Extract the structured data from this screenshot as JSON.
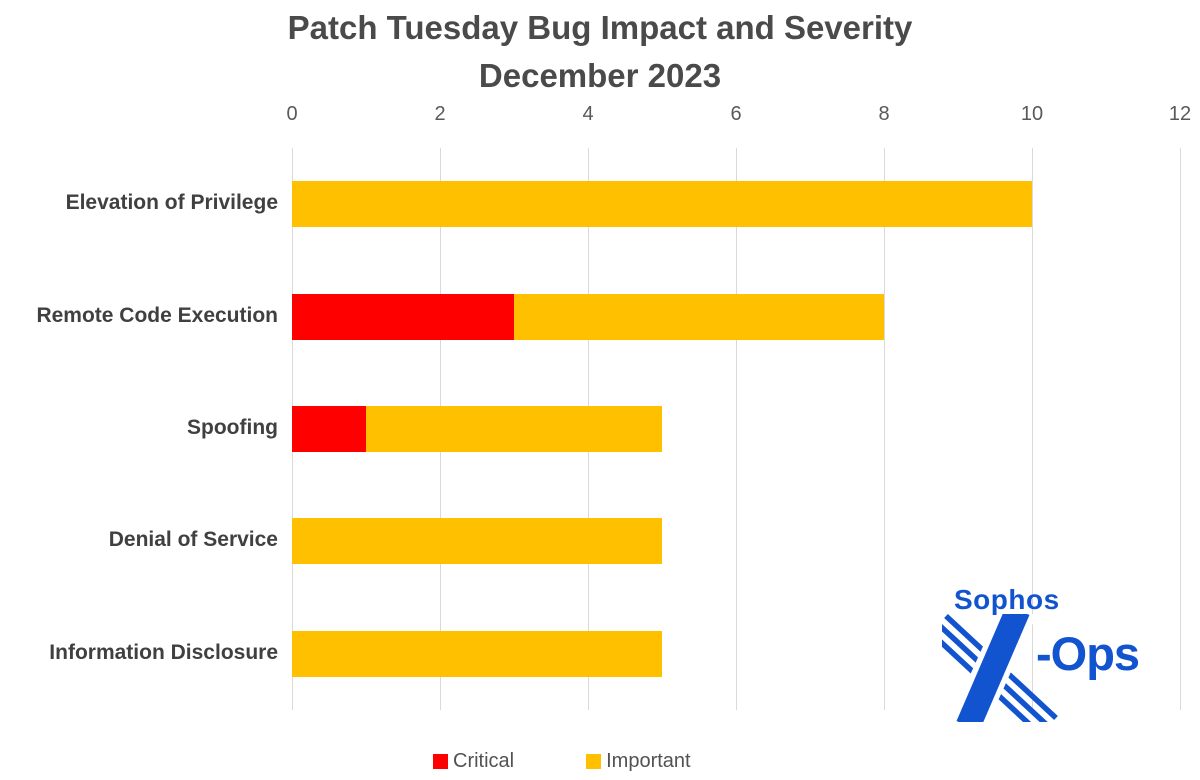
{
  "chart_data": {
    "type": "bar",
    "orientation": "horizontal",
    "stacked": true,
    "title": "Patch Tuesday Bug Impact and Severity",
    "subtitle": "December 2023",
    "categories": [
      "Elevation of Privilege",
      "Remote Code Execution",
      "Spoofing",
      "Denial of Service",
      "Information Disclosure"
    ],
    "series": [
      {
        "name": "Critical",
        "color": "#FF0000",
        "values": [
          0,
          3,
          1,
          0,
          0
        ]
      },
      {
        "name": "Important",
        "color": "#FFC000",
        "values": [
          10,
          5,
          4,
          5,
          5
        ]
      }
    ],
    "totals": [
      10,
      8,
      5,
      5,
      5
    ],
    "x_axis": {
      "min": 0,
      "max": 12,
      "tick_step": 2,
      "ticks": [
        0,
        2,
        4,
        6,
        8,
        10,
        12
      ],
      "position": "top"
    },
    "grid": true,
    "gridline_color": "#D9D9D9",
    "legend_position": "bottom"
  },
  "legend": {
    "items": [
      {
        "label": "Critical",
        "color": "#FF0000"
      },
      {
        "label": "Important",
        "color": "#FFC000"
      }
    ]
  },
  "logo": {
    "brand": "Sophos",
    "suffix": "-Ops",
    "color": "#1254CF"
  },
  "style": {
    "title_color": "#4A4A4A",
    "tick_color": "#595959",
    "category_color": "#404040",
    "legend_text_color": "#525252"
  }
}
